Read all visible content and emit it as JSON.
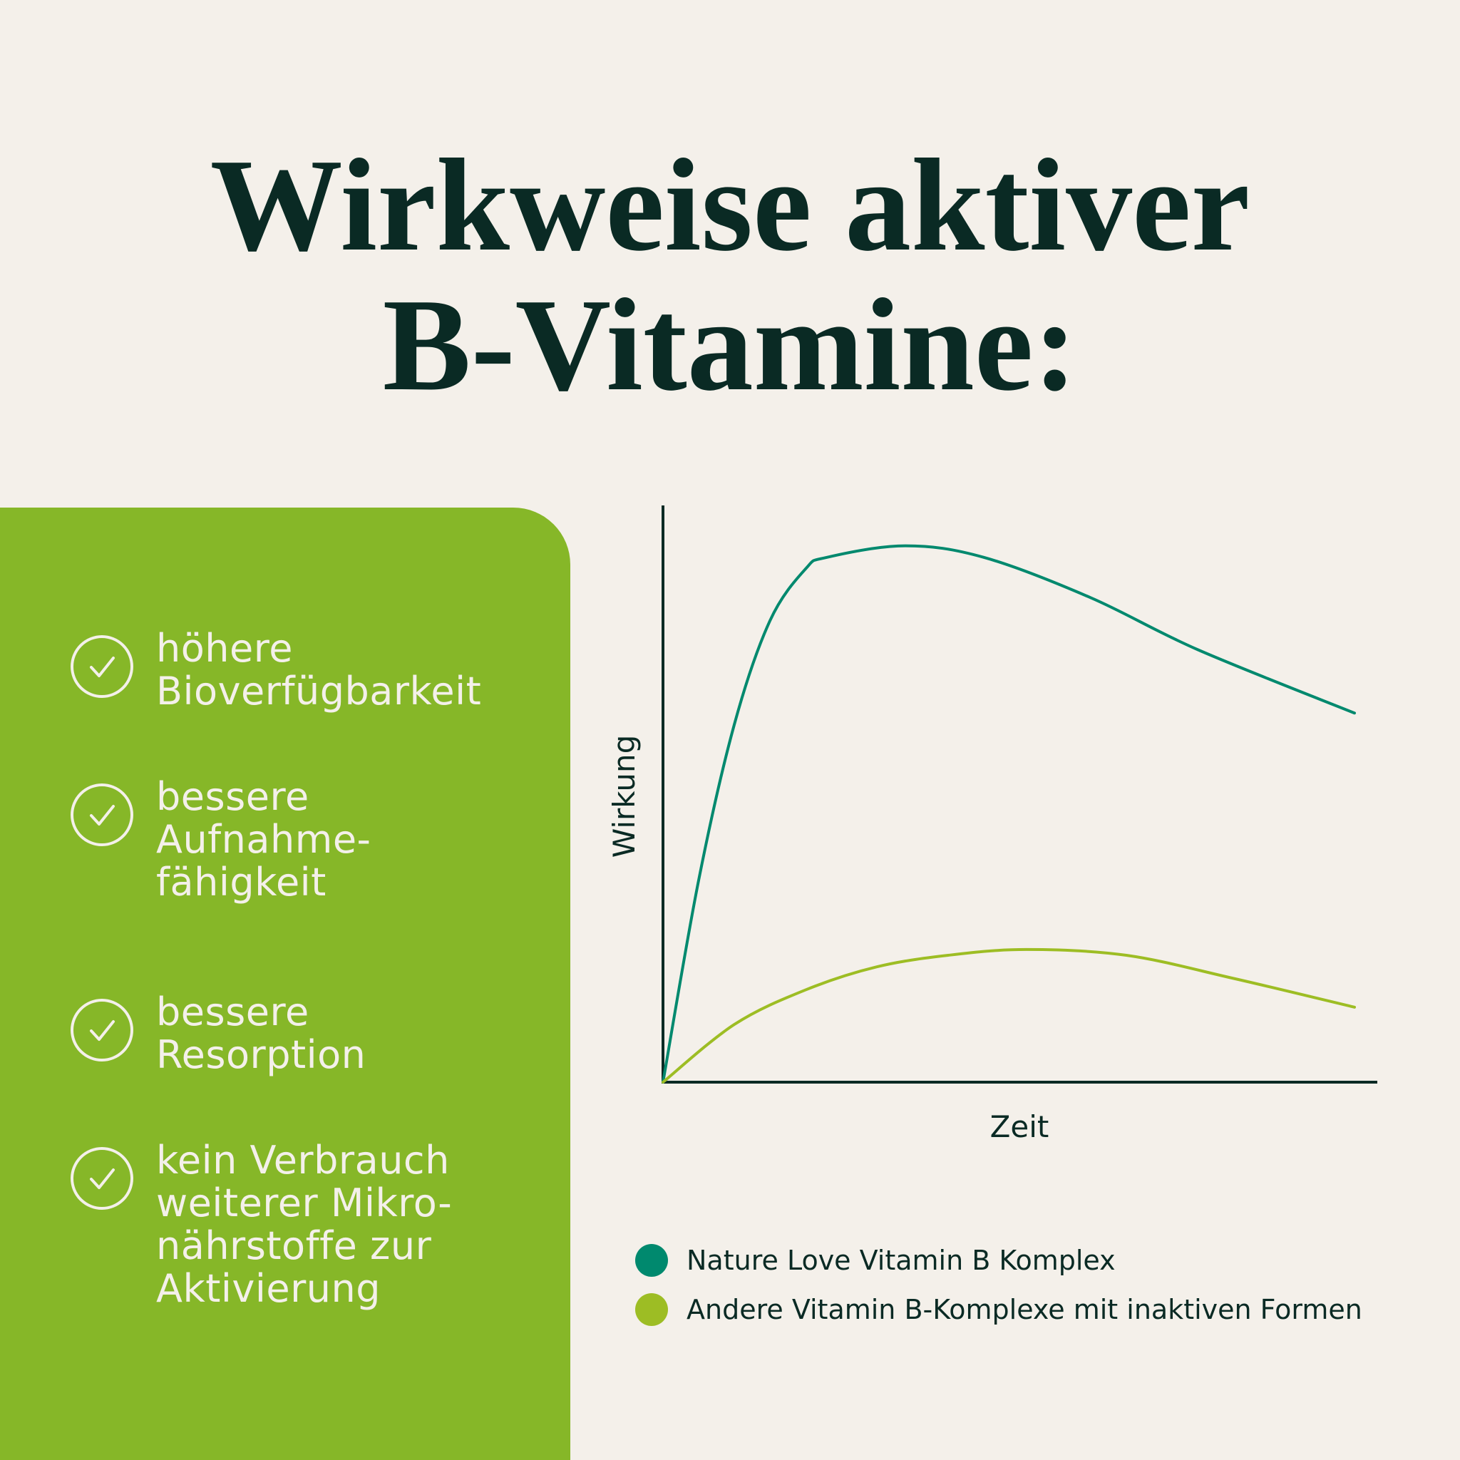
{
  "title": {
    "line1": "Wirkweise aktiver",
    "line2": "B-Vitamine:"
  },
  "colors": {
    "background": "#f4f0ea",
    "panel": "#86b728",
    "text": "#0a2a24",
    "series_1": "#00896e",
    "series_2": "#9dbd24"
  },
  "benefits": [
    {
      "icon": "check-circle-icon",
      "lines": [
        "höhere",
        "Bioverfügbarkeit"
      ]
    },
    {
      "icon": "check-circle-icon",
      "lines": [
        "bessere",
        "Aufnahme-",
        "fähigkeit"
      ]
    },
    {
      "icon": "check-circle-icon",
      "lines": [
        "bessere",
        "Resorption"
      ]
    },
    {
      "icon": "check-circle-icon",
      "lines": [
        "kein Verbrauch",
        "weiterer Mikro-",
        "nährstoffe zur",
        "Aktivierung"
      ]
    }
  ],
  "chart_data": {
    "type": "line",
    "xlabel": "Zeit",
    "ylabel": "Wirkung",
    "xlim": [
      0,
      100
    ],
    "ylim": [
      0,
      100
    ],
    "grid": false,
    "ticks": false,
    "legend": "bottom",
    "series": [
      {
        "name": "Nature Love Vitamin B Komplex",
        "color": "#00896e",
        "x": [
          0,
          5,
          10,
          15,
          20,
          23,
          34,
          45,
          60,
          75,
          97
        ],
        "y": [
          0,
          35,
          62,
          80,
          89,
          91,
          93,
          91,
          84,
          75,
          64
        ]
      },
      {
        "name": "Andere Vitamin B-Komplexe mit inaktiven Formen",
        "color": "#9dbd24",
        "x": [
          0,
          10,
          20,
          30,
          40,
          51,
          65,
          80,
          97
        ],
        "y": [
          0,
          10,
          16,
          20,
          22,
          23,
          22,
          18,
          13
        ]
      }
    ]
  }
}
